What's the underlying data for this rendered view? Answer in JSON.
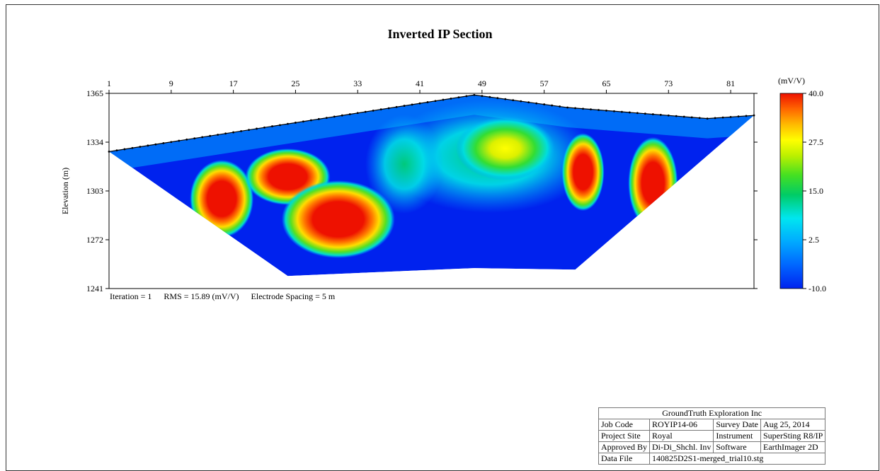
{
  "chart_data": {
    "type": "heatmap",
    "title": "Inverted IP Section",
    "ylabel": "Elevation (m)",
    "x_ticks": [
      "1",
      "9",
      "17",
      "25",
      "33",
      "41",
      "49",
      "57",
      "65",
      "73",
      "81"
    ],
    "x_range": [
      1,
      84
    ],
    "y_ticks": [
      "1365",
      "1334",
      "1303",
      "1272",
      "1241"
    ],
    "y_range": [
      1241,
      1365
    ],
    "colorbar": {
      "unit": "(mV/V)",
      "tick_labels": [
        "40.0",
        "27.5",
        "15.0",
        "2.5",
        "-10.0"
      ],
      "range": [
        -10,
        40
      ]
    },
    "surface_profile": [
      [
        1,
        1328
      ],
      [
        48,
        1364
      ],
      [
        60,
        1356
      ],
      [
        78,
        1349
      ],
      [
        84,
        1351
      ]
    ],
    "section_bottom": [
      [
        1,
        1328
      ],
      [
        24,
        1249
      ],
      [
        48,
        1254
      ],
      [
        61,
        1253
      ],
      [
        84,
        1351
      ]
    ],
    "anomalies": [
      {
        "x": 15.5,
        "y": 1298,
        "value": 40
      },
      {
        "x": 24,
        "y": 1312,
        "value": 36
      },
      {
        "x": 30.5,
        "y": 1285,
        "value": 40
      },
      {
        "x": 62,
        "y": 1315,
        "value": 40
      },
      {
        "x": 71,
        "y": 1308,
        "value": 38
      },
      {
        "x": 52,
        "y": 1330,
        "value": 24
      }
    ]
  },
  "info": {
    "iteration": "Iteration = 1",
    "rms": "RMS = 15.89 (mV/V)",
    "spacing": "Electrode Spacing = 5 m"
  },
  "title_block": {
    "company": "GroundTruth Exploration Inc",
    "rows": [
      [
        "Job Code",
        "ROYIP14-06",
        "Survey Date",
        "Aug 25, 2014"
      ],
      [
        "Project Site",
        "Royal",
        "Instrument",
        "SuperSting R8/IP"
      ],
      [
        "Approved By",
        "Di-Di_Shchl. Inv",
        "Software",
        "EarthImager 2D"
      ]
    ],
    "data_file_label": "Data File",
    "data_file": "140825D2S1-merged_trial10.stg"
  },
  "colors": {
    "low": "#0022ee",
    "high": "#ee1100"
  }
}
